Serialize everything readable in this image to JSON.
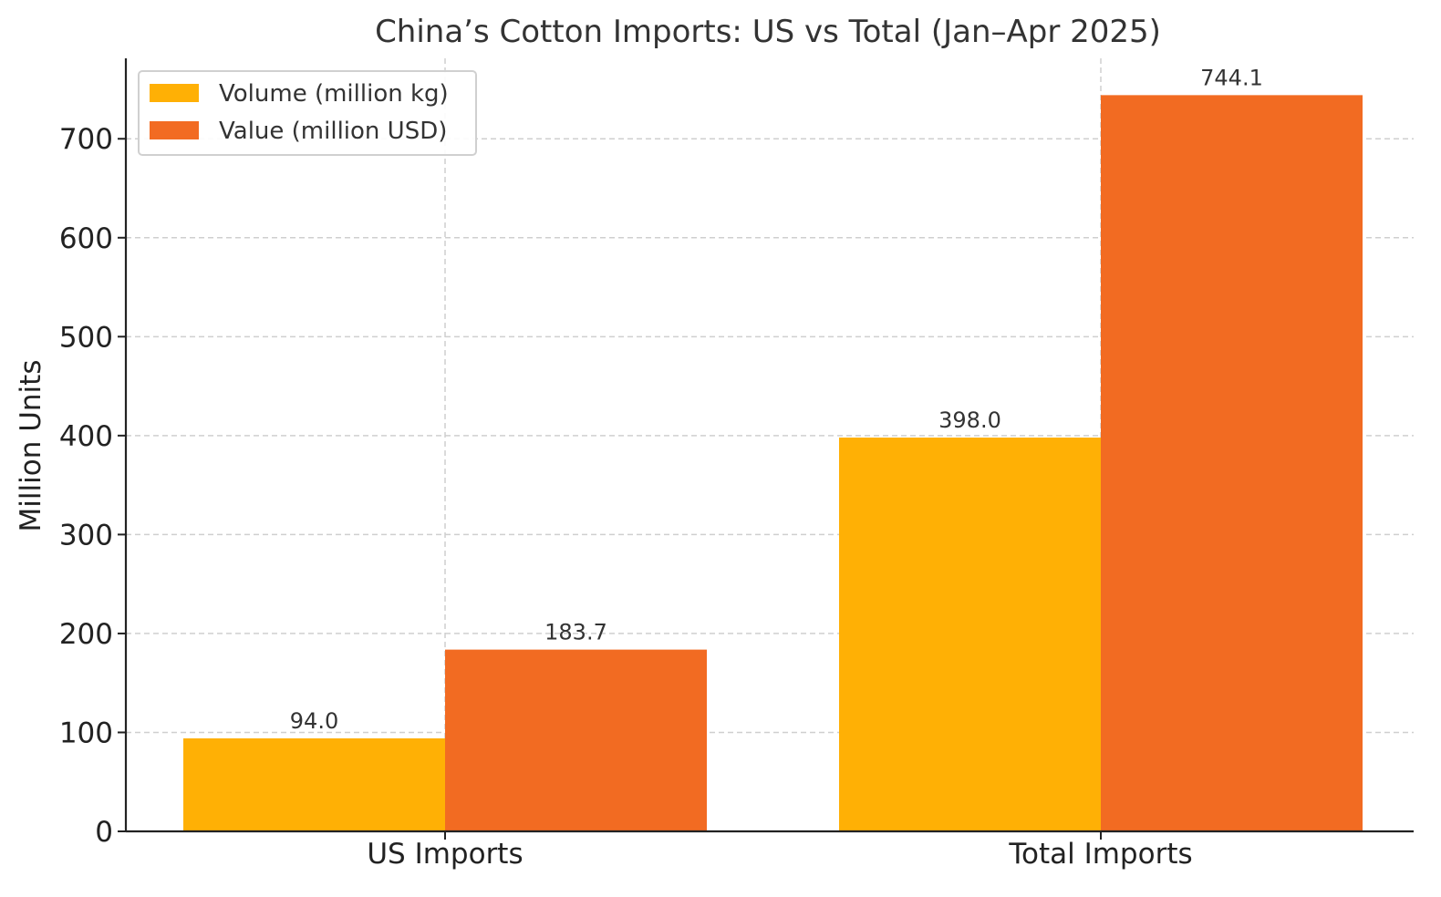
{
  "chart_data": {
    "type": "bar",
    "title": "China’s Cotton Imports: US vs Total (Jan–Apr 2025)",
    "xlabel": "",
    "ylabel": "Million Units",
    "categories": [
      "US Imports",
      "Total Imports"
    ],
    "series": [
      {
        "name": "Volume (million kg)",
        "values": [
          94.0,
          398.0
        ],
        "color": "#FFB005",
        "value_labels": [
          "94.0",
          "398.0"
        ]
      },
      {
        "name": "Value (million USD)",
        "values": [
          183.7,
          744.1
        ],
        "color": "#F26B22",
        "value_labels": [
          "183.7",
          "744.1"
        ]
      }
    ],
    "ylim": [
      0,
      781.3
    ],
    "yticks": [
      0,
      100,
      200,
      300,
      400,
      500,
      600,
      700
    ],
    "ytick_labels": [
      "0",
      "100",
      "200",
      "300",
      "400",
      "500",
      "600",
      "700"
    ],
    "grid": true,
    "legend_position": "top-left"
  }
}
